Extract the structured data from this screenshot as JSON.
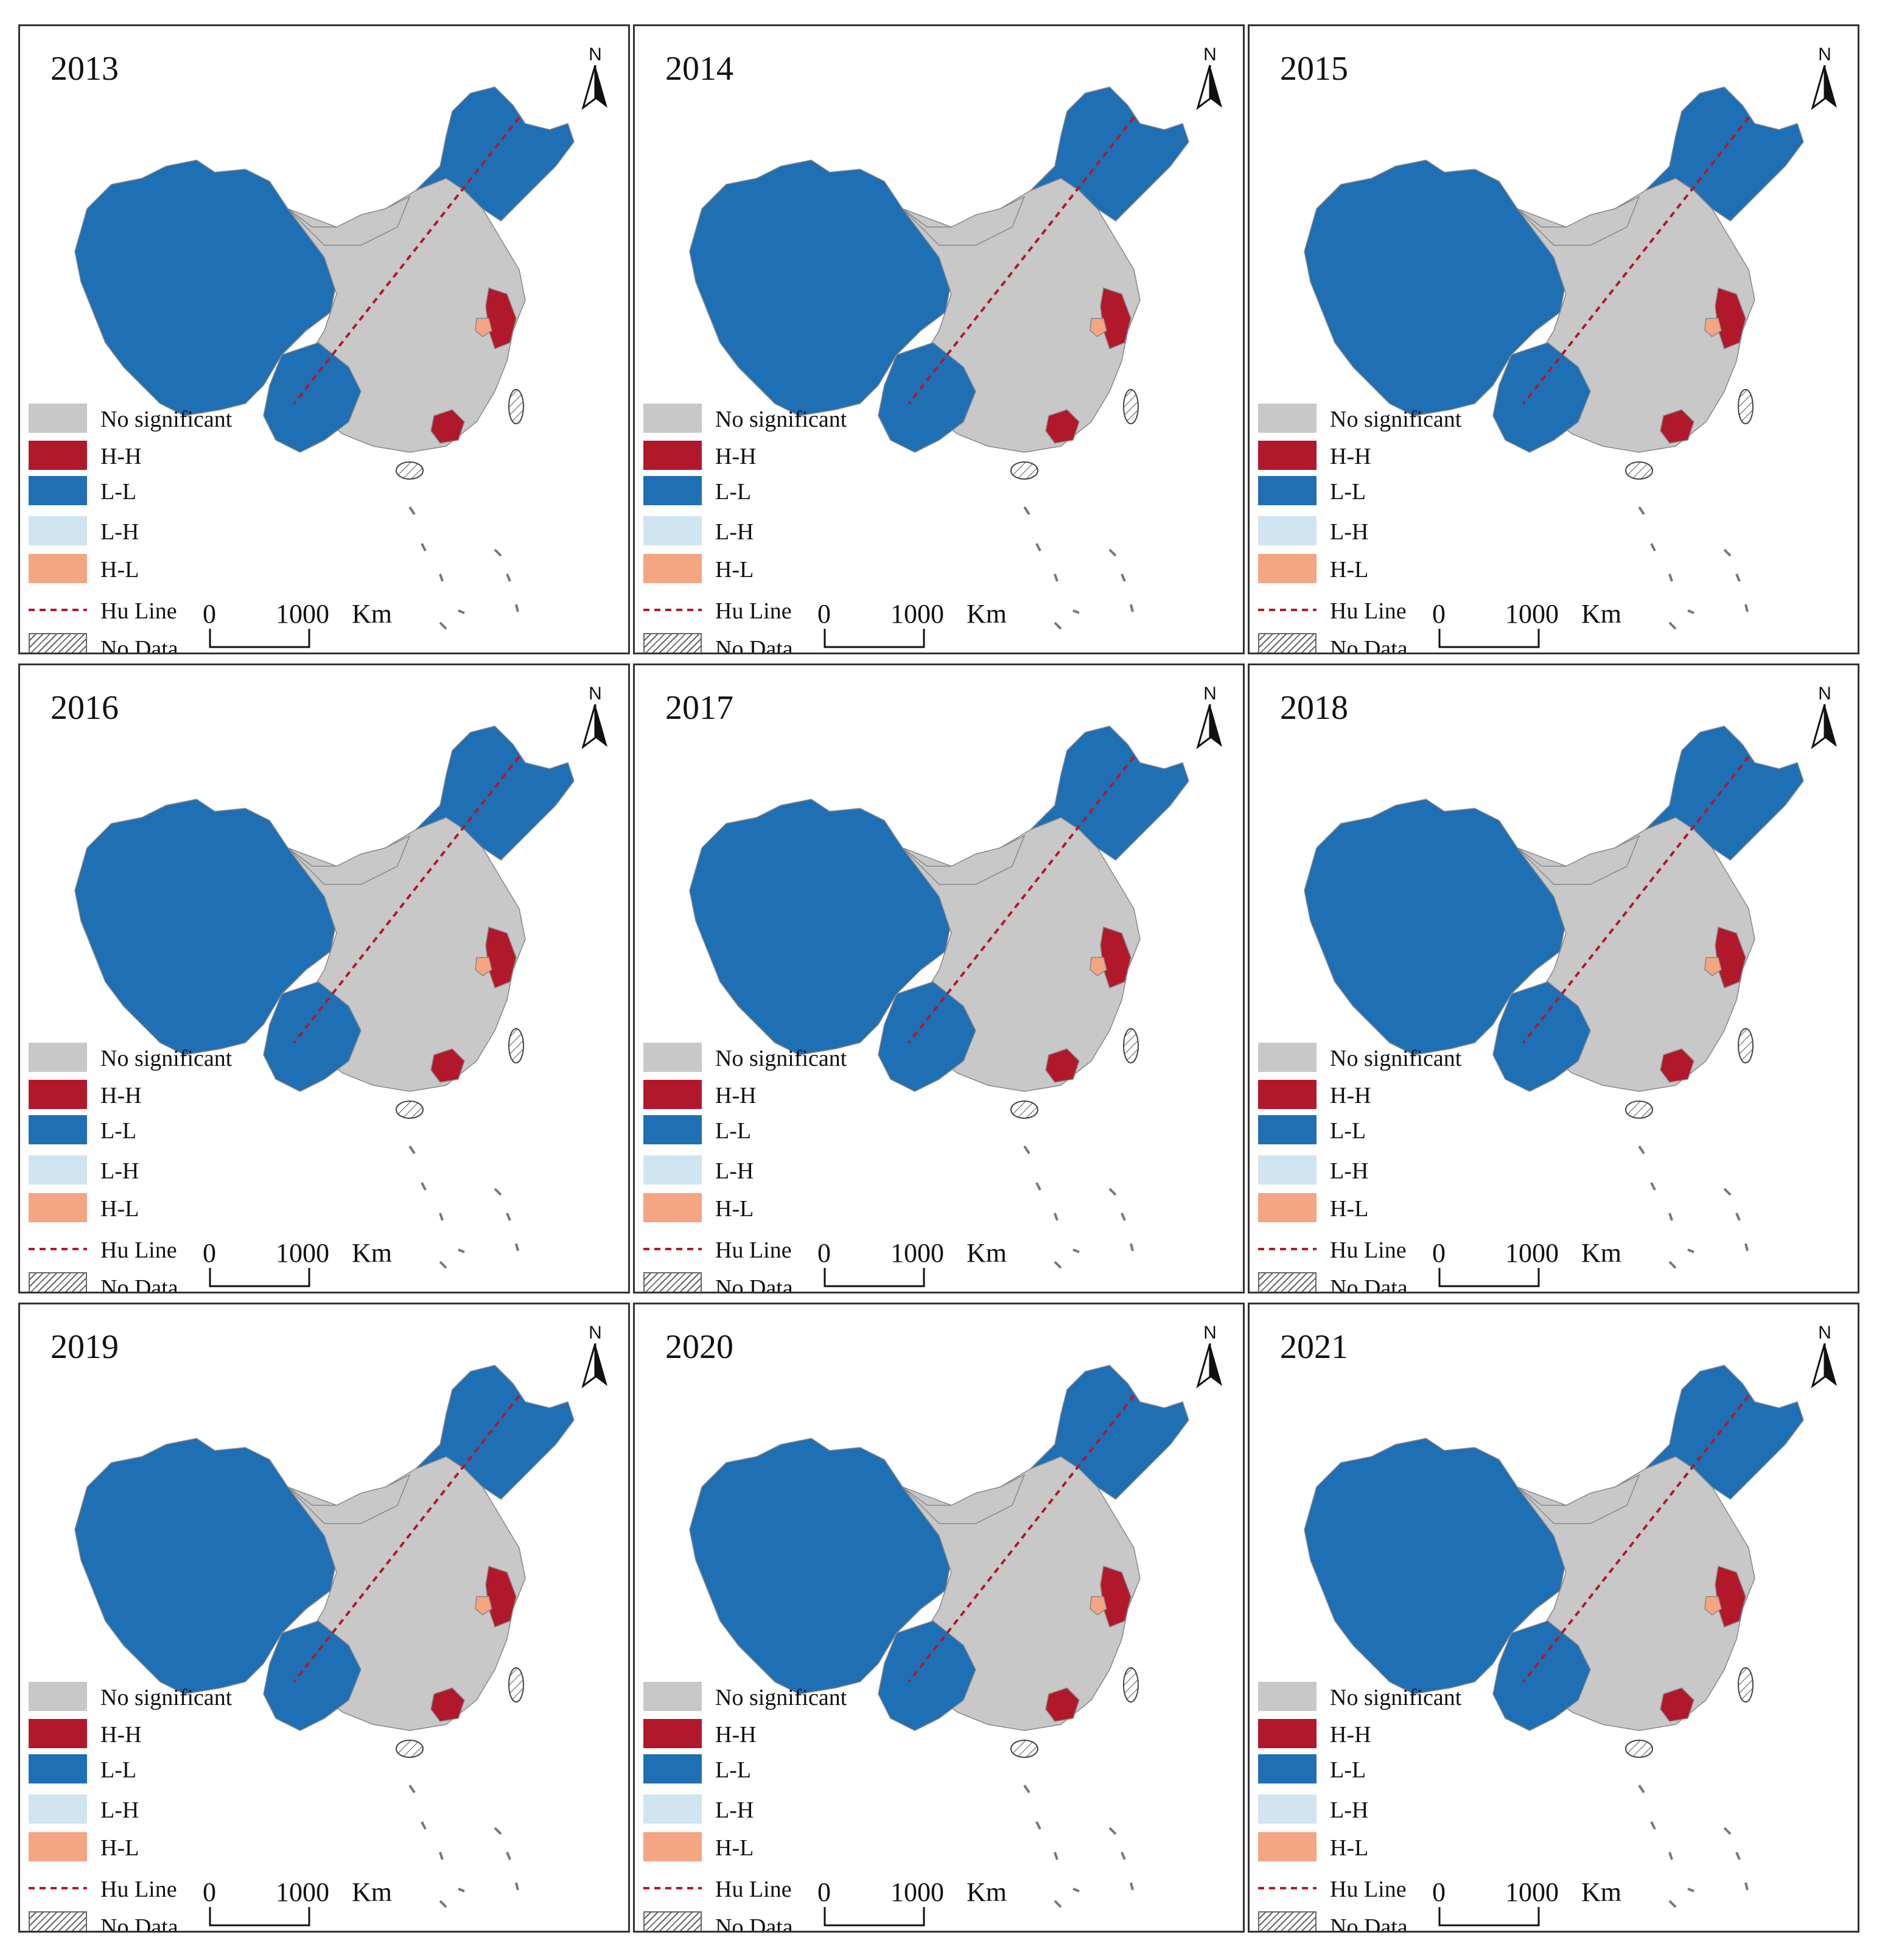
{
  "figure": {
    "panels": [
      {
        "year": "2013"
      },
      {
        "year": "2014"
      },
      {
        "year": "2015"
      },
      {
        "year": "2016"
      },
      {
        "year": "2017"
      },
      {
        "year": "2018"
      },
      {
        "year": "2019"
      },
      {
        "year": "2020"
      },
      {
        "year": "2021"
      }
    ]
  },
  "north_arrow": {
    "label": "N"
  },
  "legend": {
    "no_significant": "No significant",
    "hh": "H-H",
    "ll": "L-L",
    "lh": "L-H",
    "hl": "H-L",
    "hu_line": "Hu Line",
    "no_data": "No Data"
  },
  "scale_bar": {
    "zero": "0",
    "distance": "1000",
    "unit": "Km"
  },
  "colors": {
    "no_significant": "#c8c8c8",
    "hh": "#b2182b",
    "ll": "#1f6fb4",
    "lh": "#d1e5f0",
    "hl": "#f4a582",
    "hu_line": "#b2182b",
    "border": "#888888"
  }
}
